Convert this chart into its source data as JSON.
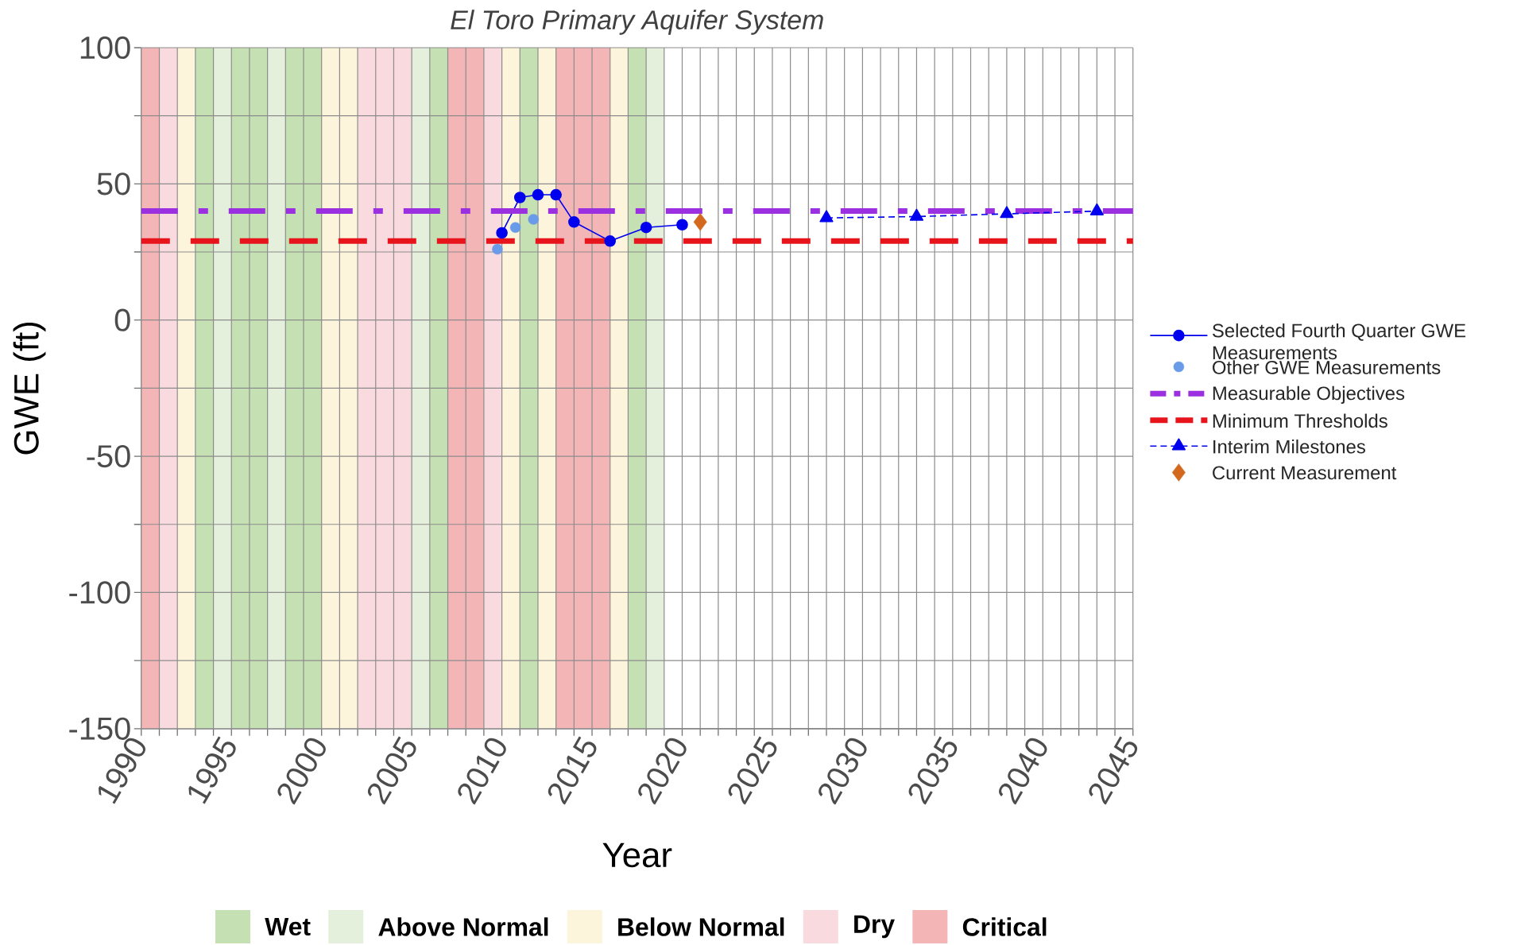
{
  "chart_data": {
    "type": "line",
    "title": "El Toro Primary Aquifer System",
    "xlabel": "Year",
    "ylabel": "GWE (ft)",
    "xlim": [
      1990,
      2045
    ],
    "ylim": [
      -150,
      100
    ],
    "xticks": [
      1990,
      {
        "value": 1991,
        "label": null
      },
      {
        "value": 1992,
        "label": null
      },
      {
        "value": 1993,
        "label": null
      },
      {
        "value": 1994,
        "label": null
      },
      1995,
      {
        "value": 1996,
        "label": null
      },
      {
        "value": 1997,
        "label": null
      },
      {
        "value": 1998,
        "label": null
      },
      {
        "value": 1999,
        "label": null
      },
      2000,
      {
        "value": 2001,
        "label": null
      },
      {
        "value": 2002,
        "label": null
      },
      {
        "value": 2003,
        "label": null
      },
      {
        "value": 2004,
        "label": null
      },
      2005,
      {
        "value": 2006,
        "label": null
      },
      {
        "value": 2007,
        "label": null
      },
      {
        "value": 2008,
        "label": null
      },
      {
        "value": 2009,
        "label": null
      },
      2010,
      {
        "value": 2011,
        "label": null
      },
      {
        "value": 2012,
        "label": null
      },
      {
        "value": 2013,
        "label": null
      },
      {
        "value": 2014,
        "label": null
      },
      2015,
      {
        "value": 2016,
        "label": null
      },
      {
        "value": 2017,
        "label": null
      },
      {
        "value": 2018,
        "label": null
      },
      {
        "value": 2019,
        "label": null
      },
      2020,
      {
        "value": 2021,
        "label": null
      },
      {
        "value": 2022,
        "label": null
      },
      {
        "value": 2023,
        "label": null
      },
      {
        "value": 2024,
        "label": null
      },
      2025,
      {
        "value": 2026,
        "label": null
      },
      {
        "value": 2027,
        "label": null
      },
      {
        "value": 2028,
        "label": null
      },
      {
        "value": 2029,
        "label": null
      },
      2030,
      {
        "value": 2031,
        "label": null
      },
      {
        "value": 2032,
        "label": null
      },
      {
        "value": 2033,
        "label": null
      },
      {
        "value": 2034,
        "label": null
      },
      2035,
      {
        "value": 2036,
        "label": null
      },
      {
        "value": 2037,
        "label": null
      },
      {
        "value": 2038,
        "label": null
      },
      {
        "value": 2039,
        "label": null
      },
      2040,
      {
        "value": 2041,
        "label": null
      },
      {
        "value": 2042,
        "label": null
      },
      {
        "value": 2043,
        "label": null
      },
      {
        "value": 2044,
        "label": null
      },
      2045
    ],
    "yticks": [
      -150,
      {
        "value": -125,
        "label": null
      },
      -100,
      {
        "value": -75,
        "label": null
      },
      -50,
      {
        "value": -25,
        "label": null
      },
      0,
      {
        "value": 25,
        "label": null
      },
      50,
      {
        "value": 75,
        "label": null
      },
      100
    ],
    "grid": true,
    "legend": "right",
    "series": [
      {
        "name": "Selected Fourth Quarter GWE Measurements",
        "marker": "circle",
        "line_style": "solid",
        "color": "#0000ee",
        "x": [
          2010,
          2011,
          2012,
          2013,
          2014,
          2016,
          2018,
          2020
        ],
        "values": [
          32,
          45,
          46,
          46,
          36,
          29,
          34,
          35
        ]
      },
      {
        "name": "Other GWE Measurements",
        "type": "scatter",
        "marker": "circle",
        "color": "#6a9be8",
        "x": [
          2009.75,
          2010.75,
          2011.75
        ],
        "values": [
          26,
          34,
          37
        ]
      },
      {
        "name": "Interim Milestones",
        "marker": "triangle",
        "line_style": "dashed",
        "color": "#0000ee",
        "x": [
          2028,
          2033,
          2038,
          2043
        ],
        "values": [
          37.5,
          38,
          39,
          40
        ]
      },
      {
        "name": "Current Measurement",
        "type": "scatter",
        "marker": "diamond",
        "color": "#d2691e",
        "x": [
          2021
        ],
        "values": [
          36
        ]
      }
    ],
    "ref_lines": [
      {
        "axis": "y",
        "value": 40,
        "label": "Measurable Objectives",
        "color": "#9b30e0",
        "line_style": "dashdot"
      },
      {
        "axis": "y",
        "value": 29,
        "label": "Minimum Thresholds",
        "color": "#e8141c",
        "line_style": "dashed"
      }
    ],
    "bands": [
      {
        "axis": "x",
        "from": 1993,
        "to": 1994,
        "label": "Wet",
        "color": "#c5e0b3"
      },
      {
        "axis": "x",
        "from": 1995,
        "to": 1997,
        "color": "#c5e0b3"
      },
      {
        "axis": "x",
        "from": 1998,
        "to": 2000,
        "color": "#c5e0b3"
      },
      {
        "axis": "x",
        "from": 2006,
        "to": 2007,
        "color": "#c5e0b3"
      },
      {
        "axis": "x",
        "from": 2011,
        "to": 2012,
        "color": "#c5e0b3"
      },
      {
        "axis": "x",
        "from": 2017,
        "to": 2018,
        "color": "#c5e0b3"
      },
      {
        "axis": "x",
        "from": 1994,
        "to": 1995,
        "label": "Above Normal",
        "color": "#e4efdc"
      },
      {
        "axis": "x",
        "from": 1997,
        "to": 1998,
        "color": "#e4efdc"
      },
      {
        "axis": "x",
        "from": 2005,
        "to": 2006,
        "color": "#e4efdc"
      },
      {
        "axis": "x",
        "from": 2018,
        "to": 2019,
        "color": "#e4efdc"
      },
      {
        "axis": "x",
        "from": 1992,
        "to": 1993,
        "label": "Below Normal",
        "color": "#fdf4dc"
      },
      {
        "axis": "x",
        "from": 2000,
        "to": 2002,
        "color": "#fdf4dc"
      },
      {
        "axis": "x",
        "from": 2010,
        "to": 2011,
        "color": "#fdf4dc"
      },
      {
        "axis": "x",
        "from": 2012,
        "to": 2013,
        "color": "#fdf4dc"
      },
      {
        "axis": "x",
        "from": 2016,
        "to": 2017,
        "color": "#fdf4dc"
      },
      {
        "axis": "x",
        "from": 1991,
        "to": 1992,
        "label": "Dry",
        "color": "#f9dadf"
      },
      {
        "axis": "x",
        "from": 2002,
        "to": 2005,
        "color": "#f9dadf"
      },
      {
        "axis": "x",
        "from": 2009,
        "to": 2010,
        "color": "#f9dadf"
      },
      {
        "axis": "x",
        "from": 1990,
        "to": 1991,
        "label": "Critical",
        "color": "#f4b5b7"
      },
      {
        "axis": "x",
        "from": 2007,
        "to": 2009,
        "color": "#f4b5b7"
      },
      {
        "axis": "x",
        "from": 2013,
        "to": 2016,
        "color": "#f4b5b7"
      }
    ]
  }
}
